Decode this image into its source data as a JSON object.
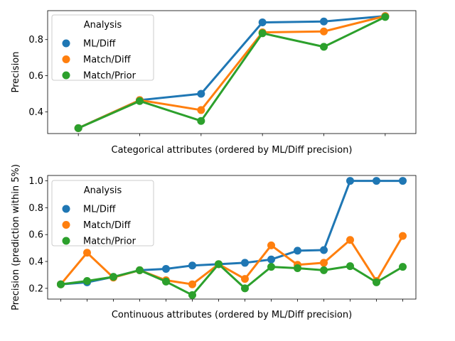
{
  "chart_data": [
    {
      "type": "line",
      "xlabel": "Categorical attributes (ordered by ML/Diff precision)",
      "ylabel": "Precision",
      "ylim": [
        0.28,
        0.96
      ],
      "yticks": [
        0.4,
        0.6,
        0.8
      ],
      "ytick_labels": [
        "0.4",
        "0.6",
        "0.8"
      ],
      "x_count": 6,
      "show_xtick_labels": false,
      "grid": false,
      "legend": {
        "title": "Analysis",
        "placement": "upper-left",
        "entries": [
          "ML/Diff",
          "Match/Diff",
          "Match/Prior"
        ]
      },
      "series": [
        {
          "name": "ML/Diff",
          "color": "#1f77b4",
          "values": [
            0.31,
            0.465,
            0.5,
            0.895,
            0.9,
            0.93
          ]
        },
        {
          "name": "Match/Diff",
          "color": "#ff7f0e",
          "values": [
            0.31,
            0.465,
            0.41,
            0.84,
            0.845,
            0.93
          ]
        },
        {
          "name": "Match/Prior",
          "color": "#2ca02c",
          "values": [
            0.31,
            0.46,
            0.35,
            0.835,
            0.76,
            0.925
          ]
        }
      ]
    },
    {
      "type": "line",
      "xlabel": "Continuous attributes (ordered by ML/Diff precision)",
      "ylabel": "Precision (prediction within 5%)",
      "ylim": [
        0.12,
        1.04
      ],
      "yticks": [
        0.2,
        0.4,
        0.6,
        0.8,
        1.0
      ],
      "ytick_labels": [
        "0.2",
        "0.4",
        "0.6",
        "0.8",
        "1.0"
      ],
      "x_count": 14,
      "show_xtick_labels": false,
      "grid": false,
      "legend": {
        "title": "Analysis",
        "placement": "upper-left",
        "entries": [
          "ML/Diff",
          "Match/Diff",
          "Match/Prior"
        ]
      },
      "series": [
        {
          "name": "ML/Diff",
          "color": "#1f77b4",
          "values": [
            0.23,
            0.245,
            0.285,
            0.335,
            0.345,
            0.37,
            0.38,
            0.39,
            0.415,
            0.48,
            0.485,
            1.0,
            1.0,
            1.0
          ]
        },
        {
          "name": "Match/Diff",
          "color": "#ff7f0e",
          "values": [
            0.23,
            0.465,
            0.28,
            0.335,
            0.26,
            0.23,
            0.38,
            0.27,
            0.52,
            0.375,
            0.39,
            0.56,
            0.255,
            0.59
          ]
        },
        {
          "name": "Match/Prior",
          "color": "#2ca02c",
          "values": [
            0.23,
            0.255,
            0.285,
            0.335,
            0.25,
            0.15,
            0.38,
            0.2,
            0.36,
            0.35,
            0.335,
            0.365,
            0.245,
            0.36
          ]
        }
      ]
    }
  ]
}
